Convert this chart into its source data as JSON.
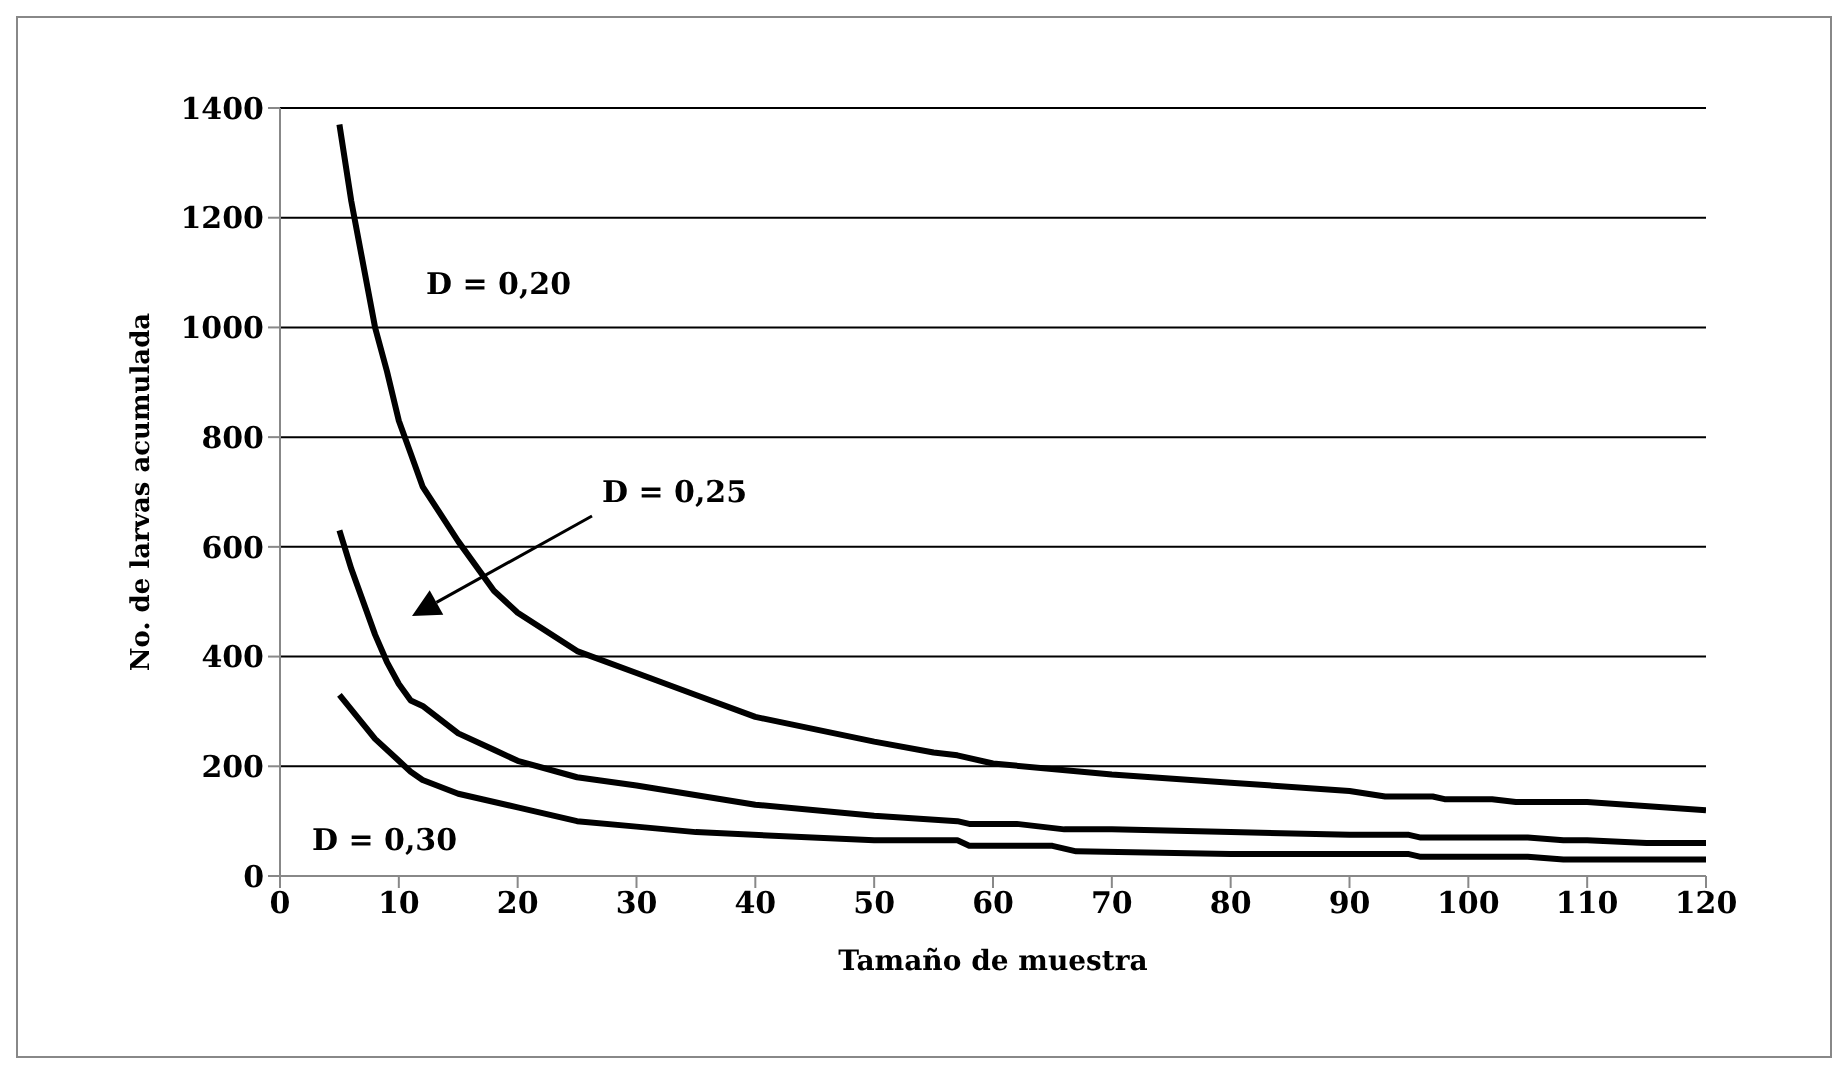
{
  "chart_data": {
    "type": "line",
    "xlabel": "Tamaño de muestra",
    "ylabel": "No. de larvas acumulada",
    "xlim": [
      0,
      120
    ],
    "xticks": [
      0,
      10,
      20,
      30,
      40,
      50,
      60,
      70,
      80,
      90,
      100,
      110,
      120
    ],
    "ylim": [
      0,
      1400
    ],
    "yticks": [
      0,
      200,
      400,
      600,
      800,
      1000,
      1200,
      1400
    ],
    "grid": "y",
    "legend": false,
    "marker": "none",
    "line_style": "solid",
    "annotations": [
      "D = 0,20",
      "D = 0,25",
      "D = 0,30"
    ],
    "series": [
      {
        "color": "#000000",
        "x": [
          5,
          6,
          8,
          9,
          10,
          11,
          12,
          15,
          18,
          20,
          25,
          30,
          35,
          40,
          50,
          55,
          57,
          60,
          70,
          80,
          90,
          93,
          97,
          98,
          102,
          104,
          110,
          120
        ],
        "values": [
          1370,
          1230,
          1000,
          920,
          830,
          770,
          710,
          610,
          520,
          480,
          410,
          370,
          330,
          290,
          245,
          225,
          220,
          205,
          185,
          170,
          155,
          145,
          145,
          140,
          140,
          135,
          135,
          120
        ]
      },
      {
        "color": "#000000",
        "x": [
          5,
          6,
          8,
          9,
          10,
          11,
          12,
          15,
          18,
          20,
          25,
          30,
          40,
          50,
          57,
          58,
          62,
          66,
          70,
          80,
          90,
          95,
          96,
          105,
          108,
          110,
          115,
          120
        ],
        "values": [
          630,
          560,
          440,
          390,
          350,
          320,
          310,
          260,
          230,
          210,
          180,
          165,
          130,
          110,
          100,
          95,
          95,
          85,
          85,
          80,
          75,
          75,
          70,
          70,
          65,
          65,
          60,
          60
        ]
      },
      {
        "color": "#000000",
        "x": [
          5,
          8,
          10,
          11,
          12,
          15,
          20,
          25,
          30,
          35,
          50,
          57,
          58,
          65,
          67,
          80,
          95,
          96,
          105,
          108,
          120
        ],
        "values": [
          330,
          250,
          210,
          190,
          175,
          150,
          125,
          100,
          90,
          80,
          65,
          65,
          55,
          55,
          45,
          40,
          40,
          35,
          35,
          30,
          30
        ]
      }
    ]
  }
}
